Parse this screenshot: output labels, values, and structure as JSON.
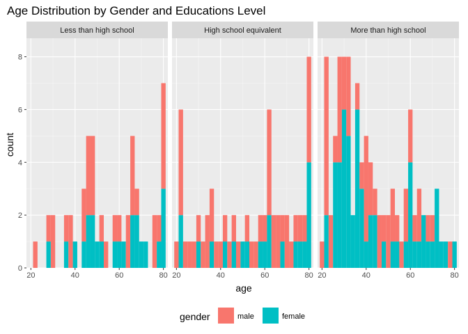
{
  "chart_data": {
    "type": "bar",
    "title": "Age Distribution by Gender and Educations Level",
    "xlabel": "age",
    "ylabel": "count",
    "xlim": [
      18,
      82
    ],
    "ylim": [
      0,
      8.7
    ],
    "x_ticks": [
      20,
      40,
      60,
      80
    ],
    "y_ticks": [
      0,
      2,
      4,
      6,
      8
    ],
    "bin_width": 2,
    "stacked": true,
    "grid": true,
    "legend": {
      "title": "gender",
      "position": "bottom"
    },
    "series": [
      {
        "name": "male",
        "color": "#F8766D"
      },
      {
        "name": "female",
        "color": "#00BFC4"
      }
    ],
    "panels": [
      {
        "label": "Less than high school",
        "x": [
          22,
          26,
          28,
          30,
          36,
          38,
          40,
          42,
          44,
          46,
          48,
          50,
          52,
          54,
          56,
          58,
          60,
          62,
          64,
          66,
          68,
          70,
          72,
          74,
          76,
          78,
          80
        ],
        "male": [
          1,
          0,
          1,
          2,
          1,
          2,
          0,
          0,
          2,
          3,
          3,
          0,
          1,
          1,
          0,
          1,
          1,
          0,
          2,
          3,
          1,
          0,
          0,
          0,
          2,
          1,
          4
        ],
        "female": [
          0,
          0,
          1,
          0,
          1,
          0,
          1,
          0,
          1,
          2,
          2,
          1,
          1,
          0,
          0,
          1,
          1,
          1,
          0,
          2,
          2,
          1,
          1,
          0,
          0,
          1,
          3
        ]
      },
      {
        "label": "High school equivalent",
        "x": [
          20,
          22,
          24,
          26,
          28,
          30,
          32,
          34,
          36,
          38,
          40,
          42,
          44,
          46,
          48,
          50,
          52,
          54,
          56,
          58,
          60,
          62,
          64,
          66,
          68,
          70,
          72,
          74,
          76,
          78,
          80
        ],
        "male": [
          1,
          4,
          1,
          1,
          1,
          1,
          1,
          2,
          2,
          1,
          1,
          1,
          1,
          1,
          1,
          0,
          1,
          1,
          1,
          1,
          1,
          4,
          2,
          2,
          1,
          2,
          1,
          1,
          1,
          1,
          4
        ],
        "female": [
          0,
          2,
          0,
          0,
          0,
          1,
          0,
          0,
          1,
          0,
          0,
          1,
          0,
          1,
          0,
          1,
          1,
          0,
          0,
          1,
          1,
          2,
          0,
          0,
          1,
          0,
          0,
          1,
          1,
          1,
          4
        ]
      },
      {
        "label": "More than high school",
        "x": [
          20,
          22,
          24,
          26,
          28,
          30,
          32,
          34,
          36,
          38,
          40,
          42,
          44,
          46,
          48,
          50,
          52,
          54,
          56,
          58,
          60,
          62,
          64,
          66,
          68,
          70,
          72,
          74,
          76,
          78,
          80
        ],
        "male": [
          1,
          6,
          2,
          1,
          4,
          2,
          3,
          0,
          1,
          1,
          4,
          2,
          1,
          2,
          1,
          2,
          2,
          1,
          1,
          2,
          2,
          1,
          2,
          0,
          1,
          1,
          0,
          0,
          0,
          1,
          0
        ],
        "female": [
          0,
          2,
          0,
          4,
          4,
          6,
          5,
          2,
          6,
          3,
          1,
          2,
          2,
          0,
          1,
          0,
          1,
          1,
          0,
          1,
          4,
          1,
          1,
          2,
          1,
          1,
          3,
          1,
          1,
          0,
          1
        ]
      }
    ]
  }
}
